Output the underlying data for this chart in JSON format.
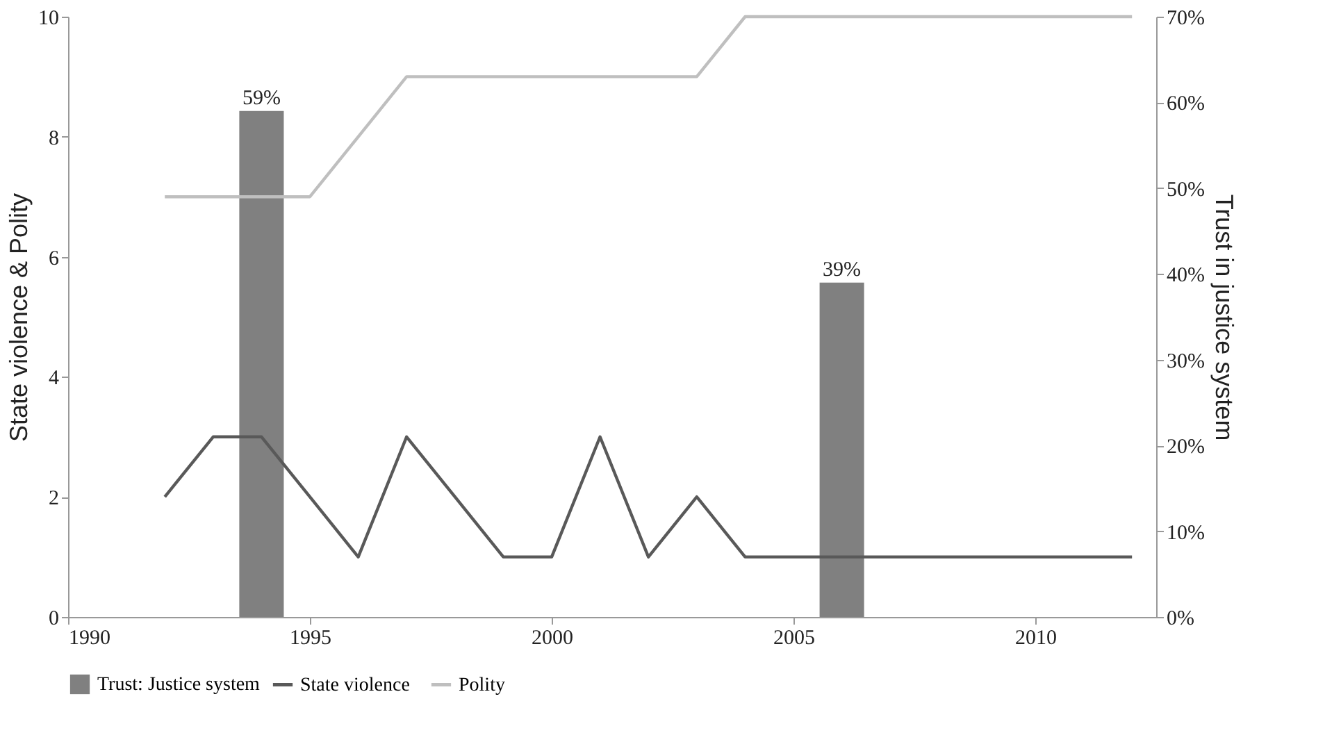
{
  "chart_data": {
    "type": "line",
    "ylabel": "State violence & Polity",
    "y2label": "Trust in justice system",
    "x": [
      1992,
      1993,
      1994,
      1995,
      1996,
      1997,
      1998,
      1999,
      2000,
      2001,
      2002,
      2003,
      2004,
      2005,
      2006,
      2007,
      2008,
      2009,
      2010,
      2011,
      2012
    ],
    "series": [
      {
        "name": "Trust: Justice system",
        "type": "bar",
        "axis": "y2",
        "color": "#808080",
        "x": [
          1994,
          2006
        ],
        "values": [
          59,
          39
        ],
        "value_labels": [
          "59%",
          "39%"
        ]
      },
      {
        "name": "State violence",
        "color": "#595959",
        "values": [
          2,
          3,
          3,
          2,
          1,
          3,
          2,
          1,
          1,
          3,
          1,
          2,
          1,
          1,
          1,
          1,
          1,
          1,
          1,
          1,
          1
        ]
      },
      {
        "name": "Polity",
        "color": "#bfbfbf",
        "values": [
          7,
          7,
          7,
          7,
          8,
          9,
          9,
          9,
          9,
          9,
          9,
          9,
          10,
          10,
          10,
          10,
          10,
          10,
          10,
          10,
          10
        ]
      }
    ],
    "xlim": [
      1990,
      2012.5
    ],
    "xticks": [
      1990,
      1995,
      2000,
      2005,
      2010
    ],
    "ylim": [
      0,
      10
    ],
    "yticks": [
      0,
      2,
      4,
      6,
      8,
      10
    ],
    "y2lim": [
      0,
      70
    ],
    "y2ticks": [
      {
        "value": 0,
        "label": "0%"
      },
      {
        "value": 10,
        "label": "10%"
      },
      {
        "value": 20,
        "label": "20%"
      },
      {
        "value": 30,
        "label": "30%"
      },
      {
        "value": 40,
        "label": "40%"
      },
      {
        "value": 50,
        "label": "50%"
      },
      {
        "value": 60,
        "label": "60%"
      },
      {
        "value": 70,
        "label": "70%"
      }
    ],
    "grid": false,
    "legend": "bottom",
    "marker": "none",
    "line_style": "solid"
  }
}
